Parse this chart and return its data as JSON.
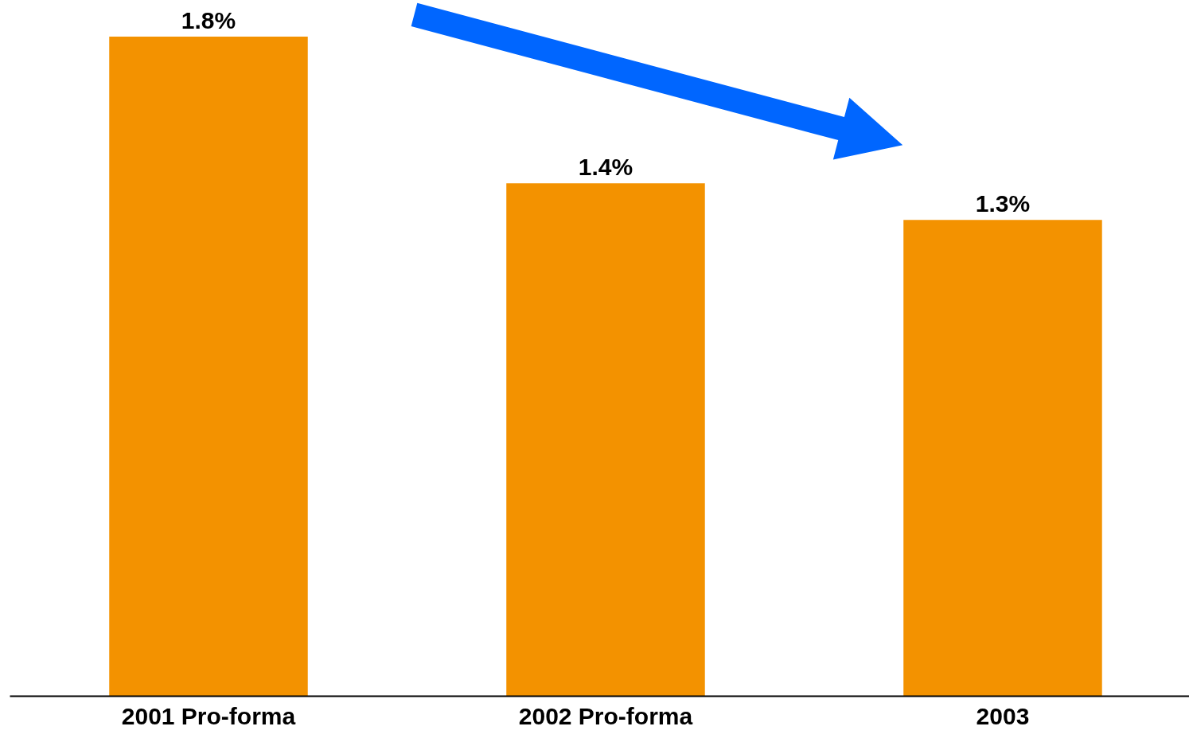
{
  "chart_data": {
    "type": "bar",
    "categories": [
      "2001 Pro-forma",
      "2002 Pro-forma",
      "2003"
    ],
    "values": [
      1.8,
      1.4,
      1.3
    ],
    "value_labels": [
      "1.8%",
      "1.4%",
      "1.3%"
    ],
    "color": "#f39200",
    "tick_labels": "x"
  }
}
